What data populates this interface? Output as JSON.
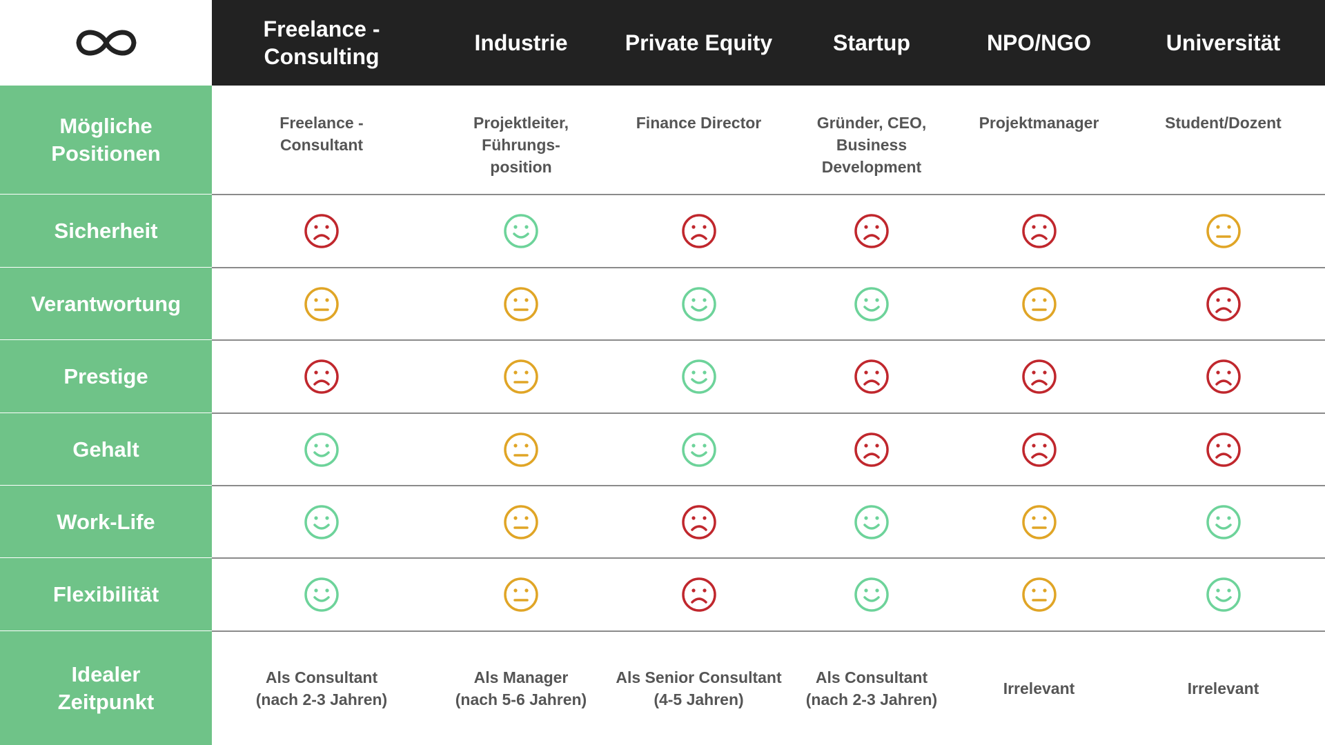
{
  "table": {
    "columns": [
      "Freelance -\nConsulting",
      "Industrie",
      "Private Equity",
      "Startup",
      "NPO/NGO",
      "Universität"
    ],
    "rows": [
      {
        "label": "Mögliche\nPositionen",
        "cells": [
          "Freelance -\nConsultant",
          "Projektleiter,\nFührungs-\nposition",
          "Finance Director",
          "Gründer, CEO,\nBusiness\nDevelopment",
          "Projektmanager",
          "Student/Dozent"
        ]
      },
      {
        "label": "Sicherheit",
        "ratings": [
          "sad",
          "happy",
          "sad",
          "sad",
          "sad",
          "neutral"
        ]
      },
      {
        "label": "Verantwortung",
        "ratings": [
          "neutral",
          "neutral",
          "happy",
          "happy",
          "neutral",
          "sad"
        ]
      },
      {
        "label": "Prestige",
        "ratings": [
          "sad",
          "neutral",
          "happy",
          "sad",
          "sad",
          "sad"
        ]
      },
      {
        "label": "Gehalt",
        "ratings": [
          "happy",
          "neutral",
          "happy",
          "sad",
          "sad",
          "sad"
        ]
      },
      {
        "label": "Work-Life",
        "ratings": [
          "happy",
          "neutral",
          "sad",
          "happy",
          "neutral",
          "happy"
        ]
      },
      {
        "label": "Flexibilität",
        "ratings": [
          "happy",
          "neutral",
          "sad",
          "happy",
          "neutral",
          "happy"
        ]
      },
      {
        "label": "Idealer\nZeitpunkt",
        "cells": [
          "Als Consultant\n(nach 2-3 Jahren)",
          "Als Manager\n(nach 5-6 Jahren)",
          "Als Senior Consultant\n(4-5 Jahren)",
          "Als Consultant\n(nach 2-3 Jahren)",
          "Irrelevant",
          "Irrelevant"
        ]
      }
    ]
  }
}
